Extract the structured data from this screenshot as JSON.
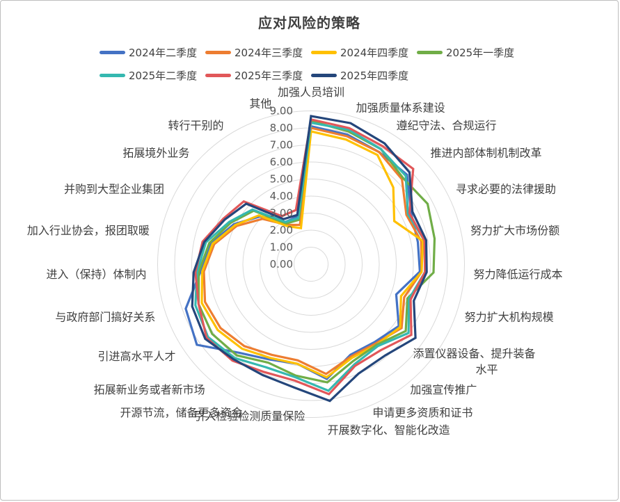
{
  "title": "应对风险的策略",
  "chart_data": {
    "type": "line",
    "subtype": "radar",
    "title": "应对风险的策略",
    "grid": "concentric-circles",
    "legend_position": "top",
    "axis": {
      "min": 0,
      "max": 9,
      "step": 1,
      "tick_labels": [
        "0.00",
        "1.00",
        "2.00",
        "3.00",
        "4.00",
        "5.00",
        "6.00",
        "7.00",
        "8.00",
        "9.00"
      ]
    },
    "categories": [
      "加强人员培训",
      "加强质量体系建设",
      "遵纪守法、合规运行",
      "推进内部体制机制改革",
      "寻求必要的法律援助",
      "努力扩大市场份额",
      "努力降低运行成本",
      "努力扩大机构规模",
      "添置仪器设备、提升装备水平",
      "加强宣传推广",
      "申请更多资质和证书",
      "开展数字化、智能化改造",
      "引入检验检测质量保险",
      "开源节流，储备更多资金",
      "拓展新业务或者新市场",
      "引进高水平人才",
      "与政府部门搞好关系",
      "进入（保持）体制内",
      "加入行业协会，报团取暖",
      "并购到大型企业集团",
      "拓展境外业务",
      "转行干别的",
      "其他"
    ],
    "category_8_wrap": [
      "添置仪器设备、提升装备",
      "水平"
    ],
    "series": [
      {
        "name": "2024年二季度",
        "color": "#4472C4",
        "values": [
          8.1,
          7.9,
          7.7,
          7.7,
          6.6,
          6.4,
          6.4,
          5.3,
          6.3,
          5.9,
          5.8,
          6.8,
          5.9,
          6.1,
          6.7,
          8.2,
          7.8,
          6.5,
          6.0,
          5.1,
          4.1,
          2.9,
          2.9
        ]
      },
      {
        "name": "2024年三季度",
        "color": "#ED7D31",
        "values": [
          8.0,
          7.8,
          7.7,
          7.3,
          6.3,
          6.6,
          6.5,
          5.8,
          6.5,
          6.0,
          5.9,
          6.5,
          5.7,
          5.8,
          6.2,
          6.5,
          6.6,
          6.3,
          5.8,
          4.9,
          3.9,
          2.7,
          2.4
        ]
      },
      {
        "name": "2024年四季度",
        "color": "#FFC000",
        "values": [
          7.8,
          7.6,
          7.5,
          6.6,
          5.5,
          6.7,
          6.5,
          5.6,
          6.4,
          6.1,
          6.0,
          6.7,
          5.9,
          6.0,
          6.4,
          6.7,
          6.8,
          6.4,
          5.9,
          5.0,
          4.2,
          2.6,
          2.2
        ]
      },
      {
        "name": "2025年一季度",
        "color": "#70AD47",
        "values": [
          8.4,
          8.1,
          7.9,
          7.4,
          7.7,
          7.4,
          7.2,
          6.0,
          6.8,
          6.1,
          6.2,
          7.0,
          6.6,
          6.3,
          6.9,
          7.1,
          7.0,
          6.6,
          6.1,
          5.3,
          4.6,
          2.8,
          2.7
        ]
      },
      {
        "name": "2025年二季度",
        "color": "#35B8B0",
        "values": [
          8.3,
          8.2,
          7.9,
          7.6,
          6.4,
          6.8,
          6.7,
          6.1,
          7.0,
          6.2,
          6.4,
          7.5,
          6.7,
          6.6,
          7.1,
          7.4,
          7.2,
          6.7,
          6.3,
          5.4,
          4.7,
          2.9,
          2.8
        ]
      },
      {
        "name": "2025年三季度",
        "color": "#E15759",
        "values": [
          8.5,
          8.3,
          8.1,
          8.2,
          6.5,
          6.8,
          6.7,
          6.2,
          7.2,
          6.5,
          6.5,
          7.7,
          6.9,
          6.9,
          7.3,
          7.5,
          7.0,
          6.8,
          6.5,
          5.8,
          5.4,
          3.3,
          3.3
        ]
      },
      {
        "name": "2025年四季度",
        "color": "#24467B",
        "values": [
          8.7,
          8.6,
          8.3,
          7.9,
          6.7,
          6.9,
          6.8,
          6.4,
          7.5,
          6.9,
          7.0,
          8.1,
          7.3,
          7.1,
          7.2,
          7.6,
          7.4,
          6.9,
          6.4,
          5.7,
          5.2,
          3.1,
          3.0
        ]
      }
    ],
    "grid_color": "#D9D9D9"
  }
}
